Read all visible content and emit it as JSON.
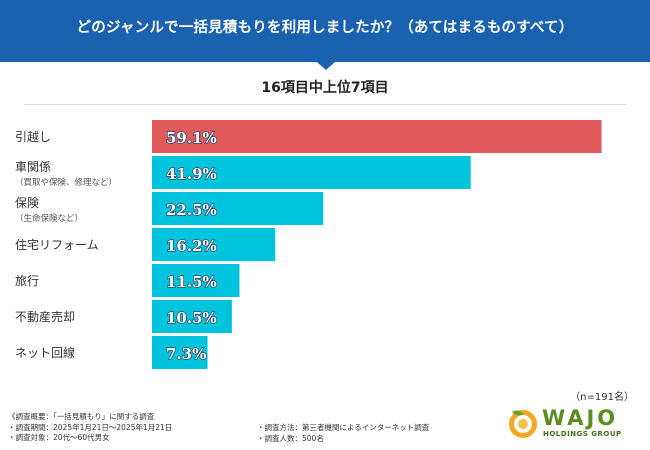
{
  "header": {
    "title": "どのジャンルで一括見積もりを利用しましたか？（あてはまるものすべて）"
  },
  "subtitle": "16項目中上位7項目",
  "colors": {
    "header": "#1a62b0",
    "bar_primary": "#e05a5b",
    "bar_secondary": "#00c4dd"
  },
  "chart_data": {
    "type": "bar",
    "orientation": "horizontal",
    "title": "16項目中上位7項目",
    "categories": [
      "引越し",
      "車関係",
      "保険",
      "住宅リフォーム",
      "旅行",
      "不動産売却",
      "ネット回線"
    ],
    "category_notes": [
      "",
      "（買取や保険、修理など）",
      "（生命保険など）",
      "",
      "",
      "",
      ""
    ],
    "values": [
      59.1,
      41.9,
      22.5,
      16.2,
      11.5,
      10.5,
      7.3
    ],
    "value_labels": [
      "59.1%",
      "41.9%",
      "22.5%",
      "16.2%",
      "11.5%",
      "10.5%",
      "7.3%"
    ],
    "unit": "%",
    "xlim": [
      0,
      61
    ],
    "highlight_index": 0,
    "grid": false
  },
  "sample_size": "（n=191名）",
  "footer": {
    "left": [
      "《調査概要：「一括見積もり」に関する調査",
      "・調査期間：2025年1月21日～2025年1月21日",
      "・調査対象：20代～60代男女"
    ],
    "right": [
      "・調査方法：第三者機関によるインターネット調査",
      "・調査人数：500名"
    ]
  },
  "logo": {
    "name": "WAJO",
    "sub": "HOLDINGS GROUP"
  }
}
